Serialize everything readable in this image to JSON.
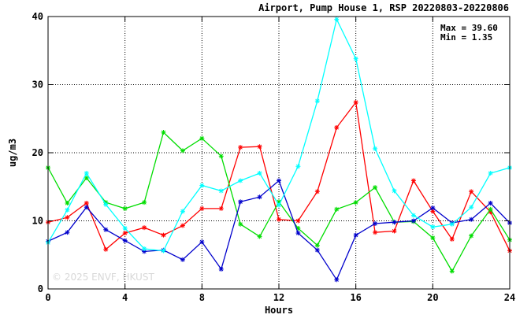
{
  "chart_data": {
    "type": "line",
    "title": "Airport, Pump House 1, RSP 20220803-20220806",
    "xlabel": "Hours",
    "ylabel": "ug/m3",
    "xlim": [
      0,
      24
    ],
    "ylim": [
      0,
      40
    ],
    "x_ticks": [
      "0",
      "4",
      "8",
      "12",
      "16",
      "20",
      "24"
    ],
    "y_ticks": [
      "0",
      "10",
      "20",
      "30",
      "40"
    ],
    "grid": true,
    "stats": {
      "max_label": "Max = 39.60",
      "min_label": "Min =  1.35"
    },
    "watermark": "© 2025  ENVF, HKUST",
    "x": [
      0,
      1,
      2,
      3,
      4,
      5,
      6,
      7,
      8,
      9,
      10,
      11,
      12,
      13,
      14,
      15,
      16,
      17,
      18,
      19,
      20,
      21,
      22,
      23,
      24
    ],
    "series": [
      {
        "color": "#ff0000",
        "values": [
          9.8,
          10.5,
          12.6,
          5.8,
          8.2,
          9.0,
          7.9,
          9.3,
          11.8,
          11.8,
          20.8,
          20.9,
          10.2,
          10.0,
          14.3,
          23.7,
          27.4,
          8.3,
          8.5,
          15.9,
          11.4,
          7.3,
          14.3,
          11.3,
          5.6
        ]
      },
      {
        "color": "#00dd00",
        "values": [
          17.8,
          12.6,
          16.3,
          12.7,
          11.8,
          12.7,
          23.0,
          20.3,
          22.1,
          19.5,
          9.5,
          7.7,
          12.8,
          8.9,
          6.4,
          11.7,
          12.7,
          14.9,
          9.8,
          9.9,
          7.5,
          2.6,
          7.8,
          11.7,
          7.2
        ]
      },
      {
        "color": "#0000cc",
        "values": [
          7.0,
          8.3,
          12.0,
          8.7,
          7.1,
          5.5,
          5.7,
          4.3,
          6.9,
          2.9,
          12.8,
          13.5,
          15.9,
          8.2,
          5.7,
          1.35,
          7.9,
          9.6,
          9.8,
          10.0,
          11.9,
          9.7,
          10.2,
          12.6,
          9.7
        ]
      },
      {
        "color": "#00ffff",
        "values": [
          6.8,
          11.6,
          17.0,
          12.4,
          8.9,
          5.9,
          5.6,
          11.4,
          15.2,
          14.4,
          15.9,
          17.0,
          12.3,
          18.0,
          27.6,
          39.6,
          33.8,
          20.6,
          14.4,
          10.8,
          9.1,
          9.5,
          12.0,
          17.0,
          17.8
        ]
      }
    ]
  }
}
